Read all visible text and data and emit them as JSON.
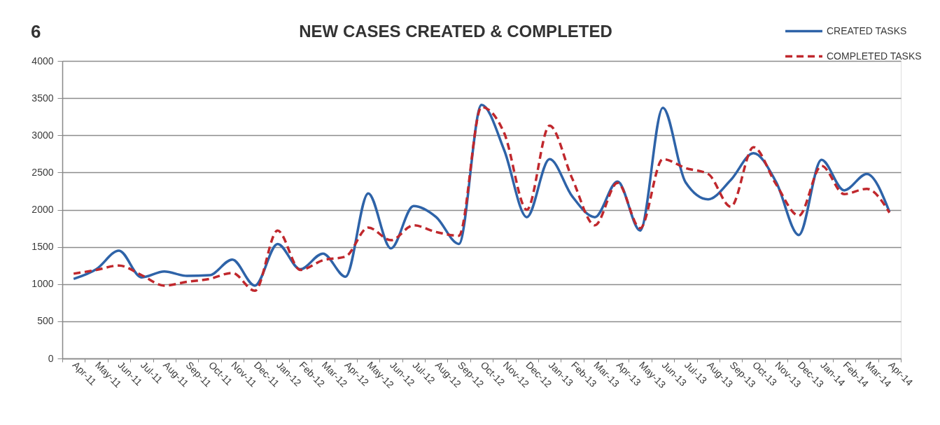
{
  "chart_data": {
    "type": "line",
    "title": "NEW CASES CREATED & COMPLETED",
    "annotations": [
      "6"
    ],
    "categories": [
      "Apr-11",
      "May-11",
      "Jun-11",
      "Jul-11",
      "Aug-11",
      "Sep-11",
      "Oct-11",
      "Nov-11",
      "Dec-11",
      "Jan-12",
      "Feb-12",
      "Mar-12",
      "Apr-12",
      "May-12",
      "Jun-12",
      "Jul-12",
      "Aug-12",
      "Sep-12",
      "Oct-12",
      "Nov-12",
      "Dec-12",
      "Jan-13",
      "Feb-13",
      "Mar-13",
      "Apr-13",
      "May-13",
      "Jun-13",
      "Jul-13",
      "Aug-13",
      "Sep-13",
      "Oct-13",
      "Nov-13",
      "Dec-13",
      "Jan-14",
      "Feb-14",
      "Mar-14",
      "Apr-14"
    ],
    "series": [
      {
        "name": "CREATED TASKS",
        "color": "#2e63a8",
        "line_style": "solid",
        "values": [
          1070,
          1200,
          1450,
          1090,
          1170,
          1110,
          1120,
          1330,
          980,
          1540,
          1200,
          1410,
          1100,
          2220,
          1480,
          2050,
          1900,
          1540,
          3410,
          2800,
          1900,
          2680,
          2180,
          1900,
          2380,
          1720,
          3370,
          2370,
          2140,
          2400,
          2760,
          2370,
          1660,
          2670,
          2260,
          2480,
          1970
        ]
      },
      {
        "name": "COMPLETED TASKS",
        "color": "#c0282d",
        "line_style": "dashed",
        "values": [
          1140,
          1190,
          1250,
          1120,
          980,
          1030,
          1070,
          1150,
          910,
          1720,
          1190,
          1320,
          1370,
          1760,
          1590,
          1790,
          1700,
          1650,
          3380,
          3030,
          2000,
          3130,
          2420,
          1790,
          2360,
          1750,
          2680,
          2560,
          2480,
          2040,
          2840,
          2340,
          1920,
          2590,
          2210,
          2280,
          1960
        ]
      }
    ],
    "ylim": [
      0,
      4000
    ],
    "yticks": [
      0,
      500,
      1000,
      1500,
      2000,
      2500,
      3000,
      3500,
      4000
    ],
    "grid": "y",
    "legend": "top right"
  }
}
